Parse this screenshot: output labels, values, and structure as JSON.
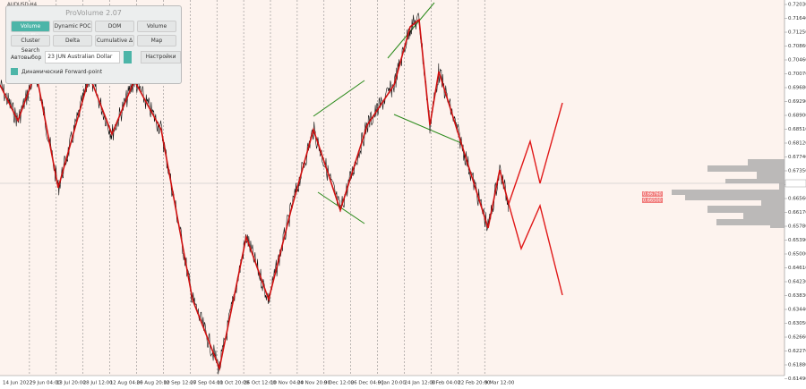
{
  "chart_symbol": "AUDUSD,H4",
  "panel": {
    "title": "ProVolume 2.07",
    "buttons": [
      "Volume Profile",
      "Dynamic POC",
      "DOM",
      "Volume",
      "Cluster Search",
      "Delta",
      "Cumulative Δ",
      "Map"
    ],
    "auto_label": "Автовыбор",
    "instrument": "23 JUN Australian Dollar",
    "settings": "Настройки",
    "forward_point": "Динамический Forward-point"
  },
  "price_axis": [
    "0.72030",
    "0.71640",
    "0.71250",
    "0.70860",
    "0.70460",
    "0.70070",
    "0.69680",
    "0.69290",
    "0.68900",
    "0.68510",
    "0.68120",
    "0.67740",
    "0.67350",
    "0.66960",
    "0.66560",
    "0.66170",
    "0.65780",
    "0.65390",
    "0.65000",
    "0.64610",
    "0.64230",
    "0.63830",
    "0.63440",
    "0.63050",
    "0.62660",
    "0.62270",
    "0.61880",
    "0.61490"
  ],
  "price_tags": [
    "0.66760",
    "0.66500"
  ],
  "time_axis": [
    "14 Jun 2022",
    "29 Jun 04:00",
    "13 Jul 20:00",
    "28 Jul 12:00",
    "12 Aug 04:00",
    "26 Aug 20:00",
    "12 Sep 12:00",
    "27 Sep 04:00",
    "11 Oct 20:00",
    "26 Oct 12:00",
    "10 Nov 04:00",
    "24 Nov 20:00",
    "9 Dec 12:00",
    "26 Dec 04:00",
    "9 Jan 20:00",
    "24 Jan 12:00",
    "8 Feb 04:00",
    "22 Feb 20:00",
    "9 Mar 12:00"
  ]
}
